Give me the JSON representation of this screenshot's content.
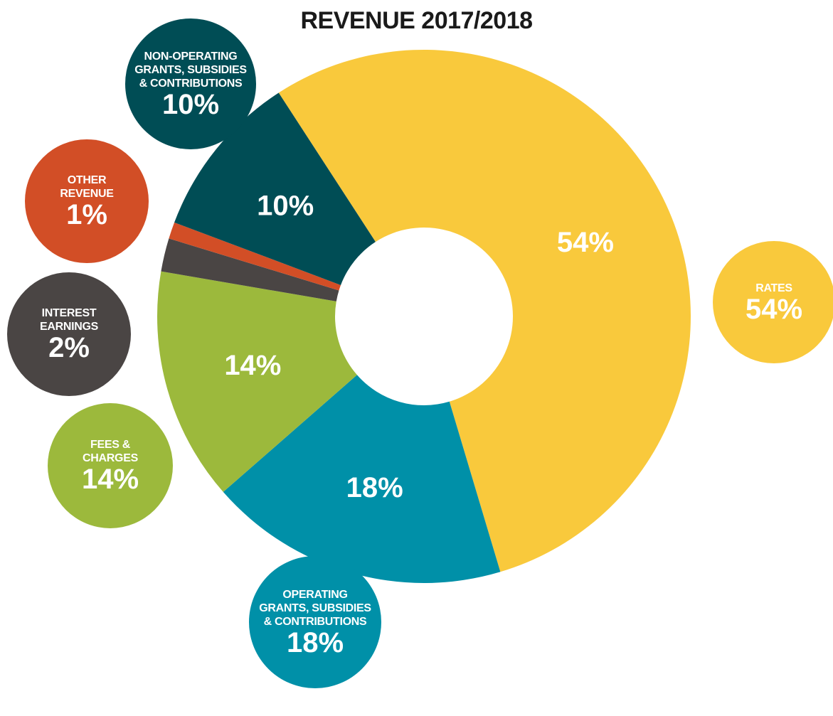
{
  "chart_data": {
    "type": "donut",
    "title": "REVENUE 2017/2018",
    "categories": [
      "RATES",
      "OPERATING\nGRANTS, SUBSIDIES\n& CONTRIBUTIONS",
      "FEES &\nCHARGES",
      "INTEREST\nEARNINGS",
      "OTHER\nREVENUE",
      "NON-OPERATING\nGRANTS, SUBSIDIES\n& CONTRIBUTIONS"
    ],
    "values": [
      54,
      18,
      14,
      2,
      1,
      10
    ],
    "value_labels": [
      "54%",
      "18%",
      "14%",
      "2%",
      "1%",
      "10%"
    ],
    "colors": [
      "#f9c93c",
      "#0090a8",
      "#9cb93c",
      "#4a4544",
      "#d24e26",
      "#004d55"
    ]
  }
}
